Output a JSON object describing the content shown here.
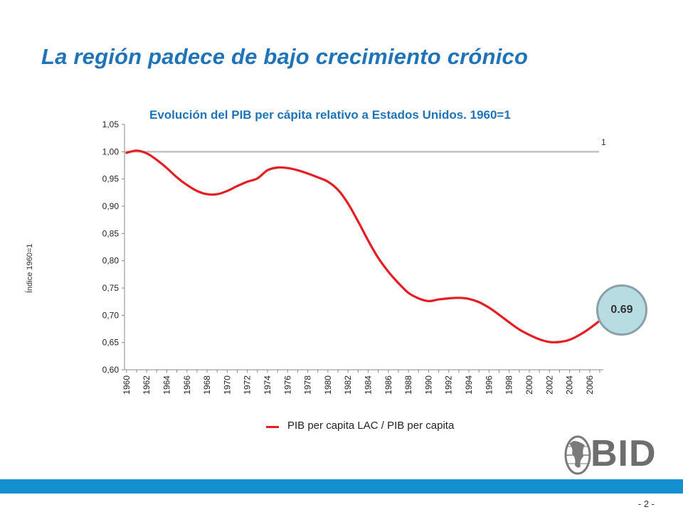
{
  "slide": {
    "title": "La región padece de bajo crecimiento crónico",
    "page_number": "- 2 -"
  },
  "logo": {
    "text": "BID"
  },
  "colors": {
    "title": "#1f73b7",
    "series_line": "#e31e24",
    "reference_line": "#c0c0c0",
    "badge_fill": "#b7dde2",
    "bottom_bar": "#1490d0"
  },
  "chart_data": {
    "type": "line",
    "title": "Evolución del PIB per cápita relativo a Estados Unidos. 1960=1",
    "xlabel": "",
    "ylabel": "Índice 1960=1",
    "ylim": [
      0.6,
      1.05
    ],
    "xlim": [
      1960,
      2007
    ],
    "y_ticks": [
      "0,60",
      "0,65",
      "0,70",
      "0,75",
      "0,80",
      "0,85",
      "0,90",
      "0,95",
      "1,00",
      "1,05"
    ],
    "x_ticks": [
      "1960",
      "1962",
      "1964",
      "1966",
      "1968",
      "1970",
      "1972",
      "1974",
      "1976",
      "1978",
      "1980",
      "1982",
      "1984",
      "1986",
      "1988",
      "1990",
      "1992",
      "1994",
      "1996",
      "1998",
      "2000",
      "2002",
      "2004",
      "2006"
    ],
    "grid": false,
    "legend_position": "bottom",
    "series": [
      {
        "name": "PIB per capita LAC / PIB per capita",
        "x": [
          1960,
          1961,
          1962,
          1963,
          1964,
          1965,
          1966,
          1967,
          1968,
          1969,
          1970,
          1971,
          1972,
          1973,
          1974,
          1975,
          1976,
          1977,
          1978,
          1979,
          1980,
          1981,
          1982,
          1983,
          1984,
          1985,
          1986,
          1987,
          1988,
          1989,
          1990,
          1991,
          1992,
          1993,
          1994,
          1995,
          1996,
          1997,
          1998,
          1999,
          2000,
          2001,
          2002,
          2003,
          2004,
          2005,
          2006,
          2007
        ],
        "y": [
          0.998,
          1.002,
          0.997,
          0.985,
          0.97,
          0.953,
          0.939,
          0.928,
          0.922,
          0.922,
          0.928,
          0.937,
          0.945,
          0.951,
          0.966,
          0.971,
          0.97,
          0.966,
          0.96,
          0.953,
          0.945,
          0.93,
          0.905,
          0.872,
          0.837,
          0.805,
          0.78,
          0.759,
          0.741,
          0.731,
          0.726,
          0.729,
          0.731,
          0.732,
          0.73,
          0.724,
          0.714,
          0.701,
          0.687,
          0.674,
          0.664,
          0.656,
          0.651,
          0.651,
          0.655,
          0.664,
          0.676,
          0.69
        ]
      }
    ],
    "reference_line": {
      "y": 1.0,
      "label": "1"
    },
    "annotation": {
      "label": "0.69",
      "x": 2007,
      "y": 0.69
    }
  }
}
